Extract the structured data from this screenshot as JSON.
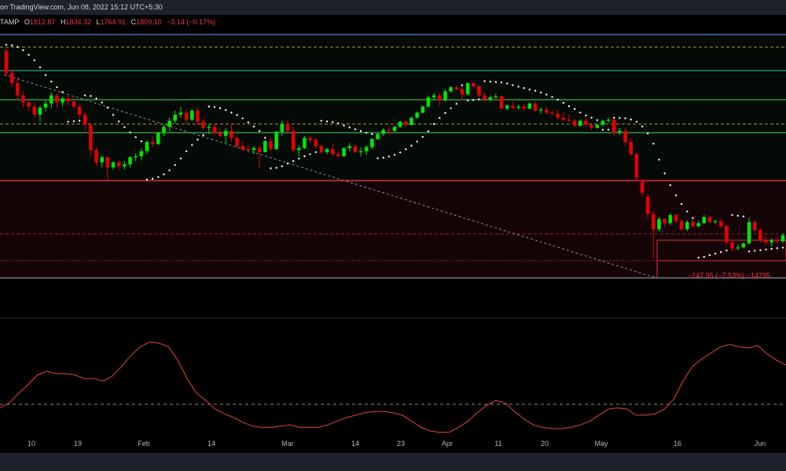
{
  "header": {
    "source_text": "on TradingView.com, Jun 08, 2022 15:12 UTC+5:30"
  },
  "ohlc": {
    "symbol_suffix": "TAMP",
    "o_label": "O",
    "o_value": "1812.87",
    "h_label": "H",
    "h_value": "1834.32",
    "l_label": "L",
    "l_value": "1764.91",
    "c_label": "C",
    "c_value": "1809.10",
    "change": "−3.14 (−0.17%)"
  },
  "measure_label": "−147.95 (−7.53%) −14795",
  "colors": {
    "up": "#00e600",
    "down": "#e60000",
    "axis_text": "#b2b5be",
    "rsi_line": "#e0443a",
    "sar_dots": "#ffffff"
  },
  "chart_data": [
    {
      "type": "candlestick",
      "title": "",
      "x_ticks": [
        "10",
        "19",
        "Feb",
        "14",
        "Mar",
        "14",
        "23",
        "Apr",
        "11",
        "20",
        "May",
        "16",
        "Jun"
      ],
      "ohlc": [
        [
          3740,
          3760,
          3480,
          3520
        ],
        [
          3520,
          3560,
          3380,
          3420
        ],
        [
          3420,
          3480,
          3250,
          3300
        ],
        [
          3300,
          3340,
          3180,
          3230
        ],
        [
          3230,
          3260,
          3150,
          3190
        ],
        [
          3190,
          3230,
          3070,
          3110
        ],
        [
          3110,
          3200,
          3040,
          3180
        ],
        [
          3180,
          3260,
          3140,
          3220
        ],
        [
          3220,
          3330,
          3170,
          3300
        ],
        [
          3300,
          3320,
          3180,
          3230
        ],
        [
          3230,
          3290,
          3190,
          3270
        ],
        [
          3270,
          3300,
          3200,
          3240
        ],
        [
          3240,
          3290,
          3160,
          3190
        ],
        [
          3190,
          3220,
          3080,
          3110
        ],
        [
          3110,
          3140,
          2960,
          3010
        ],
        [
          3010,
          3030,
          2700,
          2760
        ],
        [
          2760,
          2790,
          2600,
          2640
        ],
        [
          2640,
          2710,
          2590,
          2690
        ],
        [
          2690,
          2700,
          2470,
          2590
        ],
        [
          2590,
          2650,
          2570,
          2640
        ],
        [
          2640,
          2660,
          2560,
          2600
        ],
        [
          2600,
          2650,
          2570,
          2620
        ],
        [
          2620,
          2700,
          2590,
          2690
        ],
        [
          2690,
          2730,
          2650,
          2700
        ],
        [
          2700,
          2780,
          2660,
          2750
        ],
        [
          2750,
          2860,
          2720,
          2840
        ],
        [
          2840,
          2900,
          2790,
          2820
        ],
        [
          2820,
          2940,
          2810,
          2930
        ],
        [
          2930,
          3010,
          2900,
          2990
        ],
        [
          2990,
          3080,
          2950,
          3050
        ],
        [
          3050,
          3150,
          3020,
          3110
        ],
        [
          3110,
          3190,
          3080,
          3130
        ],
        [
          3130,
          3160,
          3020,
          3060
        ],
        [
          3060,
          3160,
          3050,
          3150
        ],
        [
          3150,
          3190,
          3000,
          3040
        ],
        [
          3040,
          3070,
          2960,
          2980
        ],
        [
          2980,
          3020,
          2920,
          2990
        ],
        [
          2990,
          3030,
          2910,
          2930
        ],
        [
          2930,
          2980,
          2880,
          2900
        ],
        [
          2900,
          2980,
          2830,
          2950
        ],
        [
          2950,
          3010,
          2840,
          2880
        ],
        [
          2880,
          2900,
          2780,
          2800
        ],
        [
          2800,
          2840,
          2750,
          2770
        ],
        [
          2770,
          2810,
          2730,
          2760
        ],
        [
          2760,
          2800,
          2720,
          2780
        ],
        [
          2780,
          2810,
          2580,
          2740
        ],
        [
          2740,
          2860,
          2740,
          2850
        ],
        [
          2850,
          2880,
          2750,
          2770
        ],
        [
          2770,
          2950,
          2760,
          2940
        ],
        [
          2940,
          3050,
          2900,
          3020
        ],
        [
          3020,
          3050,
          2920,
          2950
        ],
        [
          2950,
          2990,
          2740,
          2760
        ],
        [
          2760,
          2810,
          2700,
          2780
        ],
        [
          2780,
          2900,
          2770,
          2880
        ],
        [
          2880,
          2900,
          2830,
          2860
        ],
        [
          2860,
          2880,
          2780,
          2800
        ],
        [
          2800,
          2820,
          2720,
          2740
        ],
        [
          2740,
          2780,
          2720,
          2770
        ],
        [
          2770,
          2830,
          2700,
          2720
        ],
        [
          2720,
          2750,
          2680,
          2700
        ],
        [
          2700,
          2790,
          2690,
          2780
        ],
        [
          2780,
          2830,
          2750,
          2800
        ],
        [
          2800,
          2820,
          2730,
          2740
        ],
        [
          2740,
          2790,
          2700,
          2750
        ],
        [
          2750,
          2810,
          2710,
          2790
        ],
        [
          2790,
          2880,
          2770,
          2870
        ],
        [
          2870,
          2930,
          2860,
          2920
        ],
        [
          2920,
          2980,
          2900,
          2960
        ],
        [
          2960,
          2990,
          2910,
          2950
        ],
        [
          2950,
          3000,
          2940,
          2990
        ],
        [
          2990,
          3050,
          2980,
          3040
        ],
        [
          3040,
          3060,
          2990,
          3010
        ],
        [
          3010,
          3090,
          3000,
          3080
        ],
        [
          3080,
          3140,
          3070,
          3130
        ],
        [
          3130,
          3200,
          3120,
          3190
        ],
        [
          3190,
          3300,
          3180,
          3280
        ],
        [
          3280,
          3320,
          3260,
          3300
        ],
        [
          3300,
          3320,
          3200,
          3250
        ],
        [
          3250,
          3360,
          3240,
          3340
        ],
        [
          3340,
          3390,
          3330,
          3380
        ],
        [
          3380,
          3400,
          3350,
          3360
        ],
        [
          3360,
          3390,
          3250,
          3310
        ],
        [
          3310,
          3430,
          3300,
          3420
        ],
        [
          3420,
          3440,
          3370,
          3390
        ],
        [
          3390,
          3400,
          3280,
          3300
        ],
        [
          3300,
          3330,
          3230,
          3260
        ],
        [
          3260,
          3300,
          3240,
          3280
        ],
        [
          3280,
          3320,
          3270,
          3290
        ],
        [
          3290,
          3300,
          3160,
          3170
        ],
        [
          3170,
          3210,
          3150,
          3200
        ],
        [
          3200,
          3240,
          3160,
          3180
        ],
        [
          3180,
          3210,
          3160,
          3190
        ],
        [
          3190,
          3220,
          3150,
          3170
        ],
        [
          3170,
          3230,
          3160,
          3220
        ],
        [
          3220,
          3240,
          3130,
          3150
        ],
        [
          3150,
          3180,
          3120,
          3160
        ],
        [
          3160,
          3190,
          3110,
          3130
        ],
        [
          3130,
          3150,
          3100,
          3120
        ],
        [
          3120,
          3160,
          3060,
          3080
        ],
        [
          3080,
          3130,
          3040,
          3060
        ],
        [
          3060,
          3110,
          3040,
          3050
        ],
        [
          3050,
          3070,
          2990,
          3000
        ],
        [
          3000,
          3060,
          2990,
          3050
        ],
        [
          3050,
          3080,
          2990,
          3010
        ],
        [
          3010,
          3030,
          2960,
          2980
        ],
        [
          2980,
          3020,
          2970,
          3010
        ],
        [
          3010,
          3060,
          2990,
          3050
        ],
        [
          3050,
          3080,
          3030,
          3060
        ],
        [
          3060,
          3080,
          2900,
          2930
        ],
        [
          2930,
          2980,
          2910,
          2950
        ],
        [
          2950,
          2980,
          2800,
          2840
        ],
        [
          2840,
          2880,
          2700,
          2720
        ],
        [
          2720,
          2740,
          2450,
          2490
        ],
        [
          2450,
          2480,
          2300,
          2340
        ],
        [
          2300,
          2330,
          2090,
          2130
        ],
        [
          2130,
          2160,
          1700,
          1980
        ],
        [
          1980,
          2100,
          1960,
          2080
        ],
        [
          2080,
          2090,
          2000,
          2040
        ],
        [
          2040,
          2140,
          2020,
          2120
        ],
        [
          2120,
          2130,
          2040,
          2060
        ],
        [
          2060,
          2080,
          1960,
          1980
        ],
        [
          1980,
          2070,
          1960,
          2050
        ],
        [
          2050,
          2080,
          1990,
          2010
        ],
        [
          2010,
          2060,
          2000,
          2040
        ],
        [
          2040,
          2120,
          2030,
          2100
        ],
        [
          2100,
          2110,
          2040,
          2050
        ],
        [
          2050,
          2070,
          2030,
          2060
        ],
        [
          2060,
          2080,
          1990,
          2010
        ],
        [
          2010,
          2030,
          1830,
          1850
        ],
        [
          1850,
          1880,
          1760,
          1790
        ],
        [
          1790,
          1830,
          1770,
          1800
        ],
        [
          1800,
          1850,
          1790,
          1840
        ],
        [
          1840,
          2100,
          1830,
          2050
        ],
        [
          2050,
          2070,
          1950,
          1970
        ],
        [
          1970,
          1990,
          1850,
          1870
        ],
        [
          1870,
          1900,
          1820,
          1850
        ],
        [
          1850,
          1890,
          1810,
          1870
        ],
        [
          1870,
          1900,
          1840,
          1860
        ],
        [
          1860,
          1940,
          1840,
          1920
        ]
      ]
    },
    {
      "type": "line",
      "title": "",
      "series": [
        {
          "values": [
            36,
            40,
            48,
            55,
            63,
            66,
            64,
            64,
            63,
            60,
            60,
            58,
            62,
            70,
            79,
            86,
            90,
            89,
            86,
            75,
            60,
            48,
            42,
            35,
            31,
            28,
            24,
            21,
            20,
            20,
            21,
            22,
            20,
            20,
            20,
            22,
            25,
            28,
            30,
            32,
            33,
            33,
            32,
            30,
            25,
            20,
            17,
            16,
            16,
            20,
            25,
            32,
            38,
            42,
            40,
            33,
            27,
            22,
            20,
            19,
            19,
            20,
            22,
            25,
            30,
            35,
            36,
            35,
            30,
            30,
            31,
            35,
            43,
            58,
            70,
            76,
            81,
            86,
            88,
            86,
            85,
            87,
            80,
            75,
            71
          ]
        }
      ]
    }
  ]
}
